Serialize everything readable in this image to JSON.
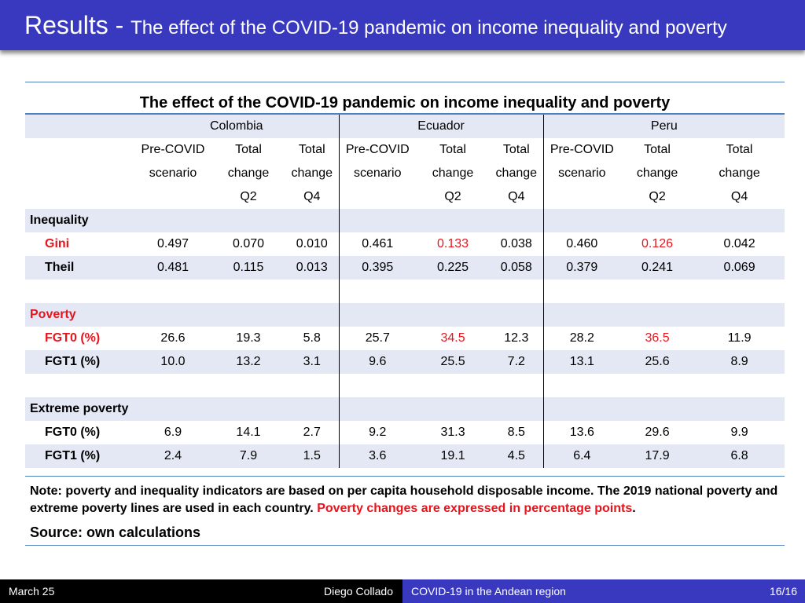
{
  "title": {
    "main": "Results - ",
    "sub": "The effect of the COVID-19 pandemic on income inequality and poverty"
  },
  "table": {
    "title": "The effect of the COVID-19 pandemic on income inequality and poverty",
    "countries": [
      "Colombia",
      "Ecuador",
      "Peru"
    ],
    "col_headers": {
      "pre_line1": "Pre-COVID",
      "pre_line2": "scenario",
      "total_line1": "Total",
      "total_line2": "change",
      "q2": "Q2",
      "q4": "Q4"
    },
    "sections": {
      "inequality": "Inequality",
      "poverty": "Poverty",
      "extreme": "Extreme poverty"
    },
    "rows": {
      "gini": {
        "label": "Gini",
        "values": [
          "0.497",
          "0.070",
          "0.010",
          "0.461",
          "0.133",
          "0.038",
          "0.460",
          "0.126",
          "0.042"
        ]
      },
      "theil": {
        "label": "Theil",
        "values": [
          "0.481",
          "0.115",
          "0.013",
          "0.395",
          "0.225",
          "0.058",
          "0.379",
          "0.241",
          "0.069"
        ]
      },
      "pov_fgt0": {
        "label": "FGT0 (%)",
        "values": [
          "26.6",
          "19.3",
          "5.8",
          "25.7",
          "34.5",
          "12.3",
          "28.2",
          "36.5",
          "11.9"
        ]
      },
      "pov_fgt1": {
        "label": "FGT1 (%)",
        "values": [
          "10.0",
          "13.2",
          "3.1",
          "9.6",
          "25.5",
          "7.2",
          "13.1",
          "25.6",
          "8.9"
        ]
      },
      "ext_fgt0": {
        "label": "FGT0 (%)",
        "values": [
          "6.9",
          "14.1",
          "2.7",
          "9.2",
          "31.3",
          "8.5",
          "13.6",
          "29.6",
          "9.9"
        ]
      },
      "ext_fgt1": {
        "label": "FGT1 (%)",
        "values": [
          "2.4",
          "7.9",
          "1.5",
          "3.6",
          "19.1",
          "4.5",
          "6.4",
          "17.9",
          "6.8"
        ]
      }
    }
  },
  "note": {
    "text": "Note: poverty and inequality indicators are based on per capita household disposable income. The 2019 national poverty and extreme poverty lines are used in each country. ",
    "highlight": "Poverty changes are expressed in percentage points",
    "end": "."
  },
  "source": "Source: own calculations",
  "footer": {
    "date": "March 25",
    "author": "Diego Collado",
    "short_title": "COVID-19 in the Andean region",
    "page": "16/16"
  },
  "colors": {
    "title_bar": "#3939c0",
    "table_rule": "#4f81bd",
    "row_shade": "#e3e8f4",
    "highlight": "#e8141c"
  }
}
